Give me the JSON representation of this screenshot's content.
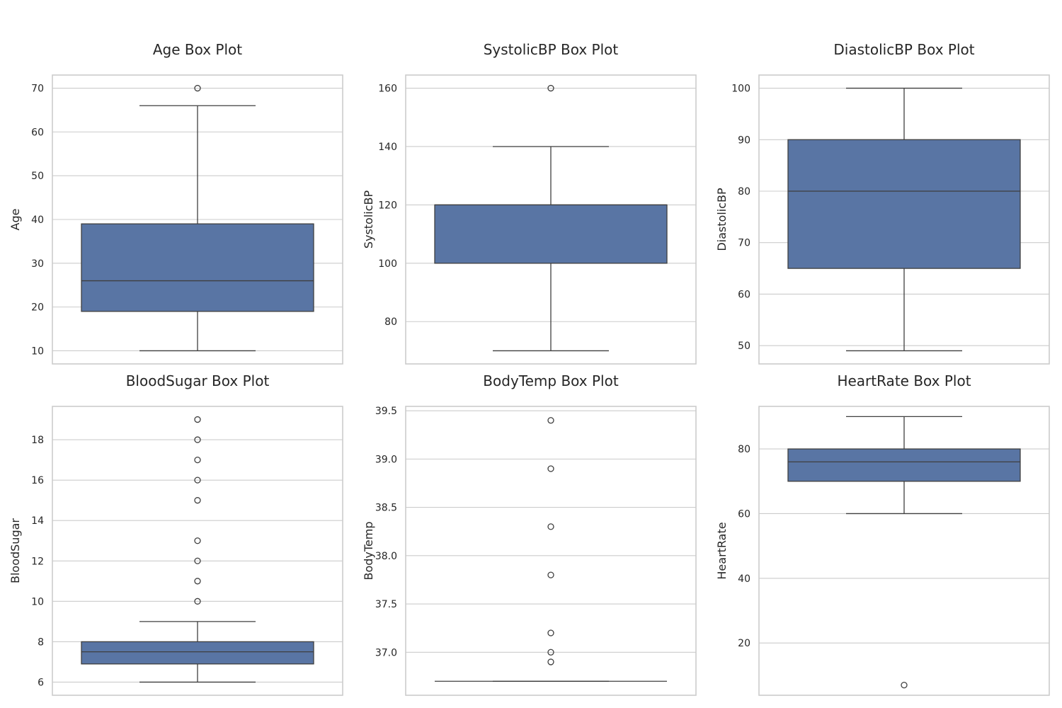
{
  "chart_data": [
    {
      "type": "box",
      "title": "Age Box Plot",
      "ylabel": "Age",
      "ylim": [
        7,
        73
      ],
      "yticks": [
        10,
        20,
        30,
        40,
        50,
        60,
        70
      ],
      "ytick_labels": [
        "10",
        "20",
        "30",
        "40",
        "50",
        "60",
        "70"
      ],
      "stats": {
        "whisker_low": 10,
        "q1": 19,
        "median": 26,
        "q3": 39,
        "whisker_high": 66
      },
      "outliers": [
        70
      ]
    },
    {
      "type": "box",
      "title": "SystolicBP Box Plot",
      "ylabel": "SystolicBP",
      "ylim": [
        65.5,
        164.5
      ],
      "yticks": [
        80,
        100,
        120,
        140,
        160
      ],
      "ytick_labels": [
        "80",
        "100",
        "120",
        "140",
        "160"
      ],
      "stats": {
        "whisker_low": 70,
        "q1": 100,
        "median": 120,
        "q3": 120,
        "whisker_high": 140
      },
      "outliers": [
        160
      ]
    },
    {
      "type": "box",
      "title": "DiastolicBP Box Plot",
      "ylabel": "DiastolicBP",
      "ylim": [
        46.45,
        102.55
      ],
      "yticks": [
        50,
        60,
        70,
        80,
        90,
        100
      ],
      "ytick_labels": [
        "50",
        "60",
        "70",
        "80",
        "90",
        "100"
      ],
      "stats": {
        "whisker_low": 49,
        "q1": 65,
        "median": 80,
        "q3": 90,
        "whisker_high": 100
      },
      "outliers": []
    },
    {
      "type": "box",
      "title": "BloodSugar Box Plot",
      "ylabel": "BloodSugar",
      "ylim": [
        5.35,
        19.65
      ],
      "yticks": [
        6,
        8,
        10,
        12,
        14,
        16,
        18
      ],
      "ytick_labels": [
        "6",
        "8",
        "10",
        "12",
        "14",
        "16",
        "18"
      ],
      "stats": {
        "whisker_low": 6,
        "q1": 6.9,
        "median": 7.5,
        "q3": 8,
        "whisker_high": 9
      },
      "outliers": [
        10,
        11,
        12,
        13,
        15,
        16,
        17,
        18,
        19
      ]
    },
    {
      "type": "box",
      "title": "BodyTemp Box Plot",
      "ylabel": "BodyTemp",
      "ylim": [
        36.555,
        39.545
      ],
      "yticks": [
        37.0,
        37.5,
        38.0,
        38.5,
        39.0,
        39.5
      ],
      "ytick_labels": [
        "37.0",
        "37.5",
        "38.0",
        "38.5",
        "39.0",
        "39.5"
      ],
      "stats": {
        "whisker_low": 36.7,
        "q1": 36.7,
        "median": 36.7,
        "q3": 36.7,
        "whisker_high": 36.7
      },
      "outliers": [
        36.9,
        37.0,
        37.2,
        37.8,
        38.3,
        38.9,
        39.4
      ]
    },
    {
      "type": "box",
      "title": "HeartRate Box Plot",
      "ylabel": "HeartRate",
      "ylim": [
        3.85,
        93.15
      ],
      "yticks": [
        20,
        40,
        60,
        80
      ],
      "ytick_labels": [
        "20",
        "40",
        "60",
        "80"
      ],
      "stats": {
        "whisker_low": 60,
        "q1": 70,
        "median": 76,
        "q3": 80,
        "whisker_high": 90
      },
      "outliers": [
        7
      ]
    }
  ]
}
